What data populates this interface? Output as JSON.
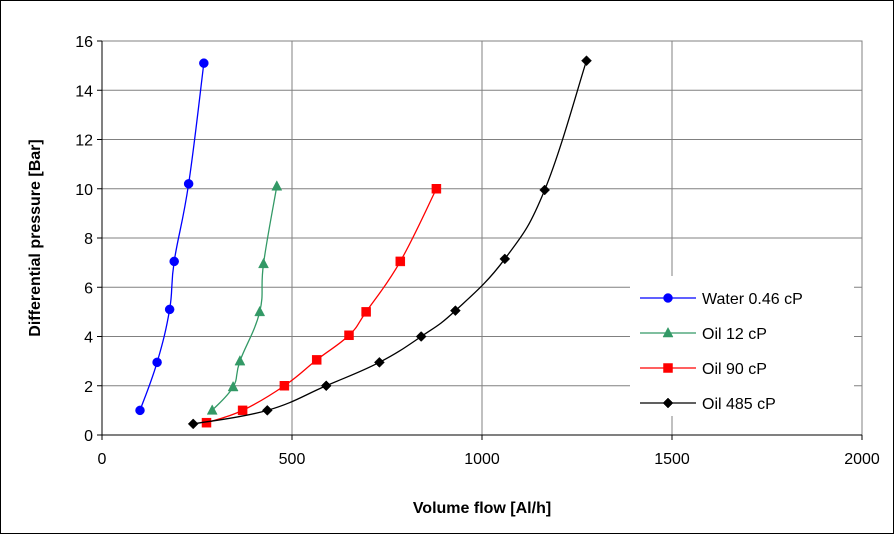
{
  "chart_data": {
    "type": "line",
    "title": "",
    "xlabel": "Volume flow [Al/h]",
    "ylabel": "Differential pressure [Bar]",
    "xlim": [
      0,
      2000
    ],
    "ylim": [
      0,
      16
    ],
    "x_ticks": [
      "0",
      "500",
      "1000",
      "1500",
      "2000"
    ],
    "y_ticks": [
      "0",
      "2",
      "4",
      "6",
      "8",
      "10",
      "12",
      "14",
      "16"
    ],
    "grid": "on",
    "legend_position": "right",
    "series": [
      {
        "name": "Water 0.46 cP",
        "color": "#0000ff",
        "marker": "circle",
        "points": [
          [
            100,
            1.0
          ],
          [
            145,
            2.95
          ],
          [
            178,
            5.1
          ],
          [
            190,
            7.05
          ],
          [
            228,
            10.2
          ],
          [
            268,
            15.1
          ]
        ]
      },
      {
        "name": "Oil 12 cP",
        "color": "#339966",
        "marker": "triangle",
        "points": [
          [
            290,
            1.0
          ],
          [
            345,
            1.95
          ],
          [
            363,
            3.0
          ],
          [
            415,
            5.0
          ],
          [
            425,
            6.95
          ],
          [
            460,
            10.1
          ]
        ]
      },
      {
        "name": "Oil 90 cP",
        "color": "#ff0000",
        "marker": "square",
        "points": [
          [
            275,
            0.5
          ],
          [
            370,
            1.0
          ],
          [
            480,
            2.0
          ],
          [
            565,
            3.05
          ],
          [
            650,
            4.05
          ],
          [
            695,
            5.0
          ],
          [
            785,
            7.05
          ],
          [
            880,
            10.0
          ]
        ]
      },
      {
        "name": "Oil 485 cP",
        "color": "#000000",
        "marker": "diamond",
        "points": [
          [
            240,
            0.45
          ],
          [
            435,
            1.0
          ],
          [
            590,
            2.0
          ],
          [
            730,
            2.95
          ],
          [
            840,
            4.0
          ],
          [
            930,
            5.05
          ],
          [
            1060,
            7.15
          ],
          [
            1165,
            9.95
          ],
          [
            1275,
            15.2
          ]
        ]
      }
    ]
  }
}
